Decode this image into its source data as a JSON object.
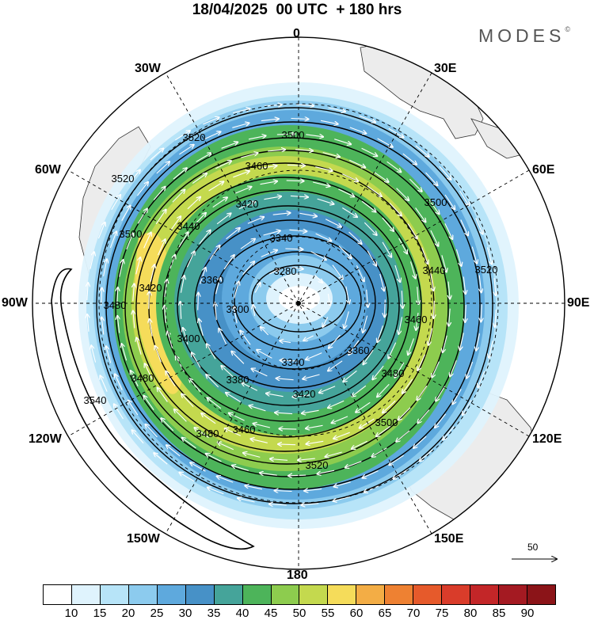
{
  "title": "18/04/2025  00 UTC  + 180 hrs",
  "brand": {
    "name": "MODES",
    "mark": "©"
  },
  "longitude_labels": {
    "top": "0",
    "bottom": "180",
    "left": "90W",
    "right": "90E",
    "nw30": "30W",
    "nw60": "60W",
    "ne30": "30E",
    "ne60": "60E",
    "sw120": "120W",
    "sw150": "150W",
    "se120": "120E",
    "se150": "150E"
  },
  "contour_labels": [
    "3280",
    "3300",
    "3340",
    "3340",
    "3360",
    "3360",
    "3380",
    "3400",
    "3420",
    "3420",
    "3420",
    "3440",
    "3440",
    "3460",
    "3460",
    "3460",
    "3480",
    "3480",
    "3480",
    "3480",
    "3500",
    "3500",
    "3500",
    "3500",
    "3520",
    "3520",
    "3520",
    "3520",
    "3540"
  ],
  "colorbar": {
    "tick_labels": [
      "10",
      "15",
      "20",
      "25",
      "30",
      "35",
      "40",
      "45",
      "50",
      "55",
      "60",
      "65",
      "70",
      "75",
      "80",
      "85",
      "90"
    ],
    "colors": [
      "#ffffff",
      "#dff3fd",
      "#b7e4f8",
      "#8ccbee",
      "#5ea9dd",
      "#4791c7",
      "#45a49a",
      "#4db45a",
      "#8dcc4e",
      "#c4d94e",
      "#f5dc5a",
      "#f3ad45",
      "#ee8132",
      "#e65a2b",
      "#d93c2a",
      "#c32628",
      "#a41a22",
      "#8b1418"
    ]
  },
  "reference_vector": {
    "label": "50"
  },
  "colors": {
    "land": "#ececec",
    "coast": "#333333",
    "contour": "#000000",
    "wind_arrow": "#ffffff",
    "grid": "#000000"
  }
}
